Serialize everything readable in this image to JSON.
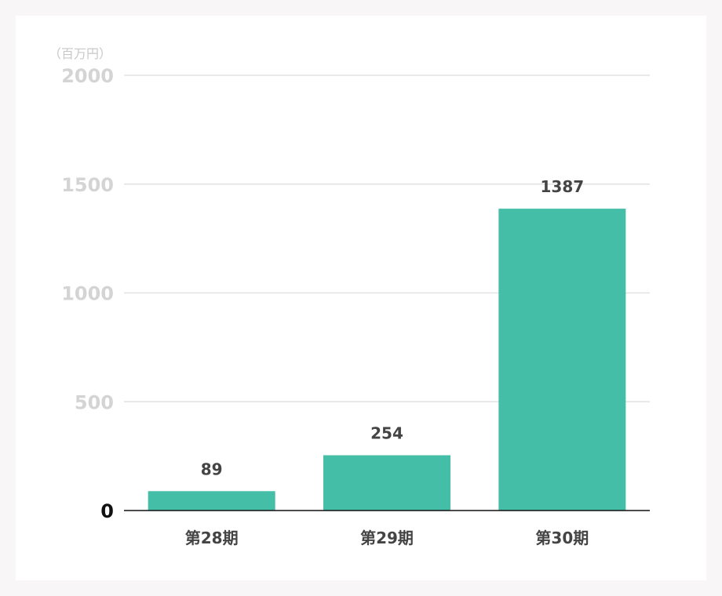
{
  "chart_data": {
    "type": "bar",
    "unit_label": "（百万円）",
    "categories": [
      "第28期",
      "第29期",
      "第30期"
    ],
    "values": [
      89,
      254,
      1387
    ],
    "data_labels": [
      "89",
      "254",
      "1387"
    ],
    "yticks": [
      0,
      500,
      1000,
      1500,
      2000
    ],
    "ytick_labels": [
      "0",
      "500",
      "1000",
      "1500",
      "2000"
    ],
    "ylim": [
      0,
      2000
    ],
    "grid": true,
    "legend": "none",
    "bar_color": "#45bea8",
    "grid_color": "#e2e2e2",
    "axis_color": "#111111"
  }
}
